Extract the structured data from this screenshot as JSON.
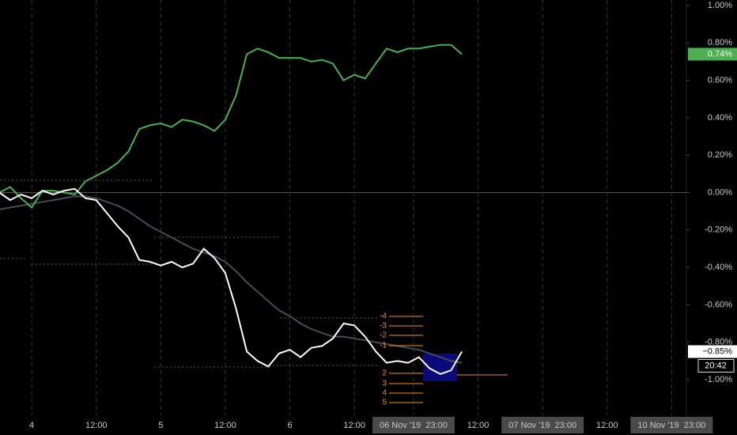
{
  "chart_data": {
    "type": "line",
    "x": [
      -6,
      -4,
      -2,
      0,
      2,
      4,
      6,
      8,
      10,
      12,
      14,
      16,
      18,
      20,
      22,
      24,
      26,
      28,
      30,
      32,
      34,
      36,
      38,
      40,
      42,
      44,
      46,
      48,
      50,
      52,
      54,
      56,
      58,
      60,
      62,
      64,
      66,
      68,
      70,
      72,
      74,
      76,
      78,
      80
    ],
    "series": [
      {
        "color": "#4caf50",
        "values": [
          0,
          0.03,
          -0.03,
          -0.08,
          0.01,
          0.01,
          0,
          -0.01,
          0.06,
          0.09,
          0.12,
          0.16,
          0.22,
          0.34,
          0.36,
          0.37,
          0.35,
          0.39,
          0.38,
          0.36,
          0.33,
          0.39,
          0.52,
          0.74,
          0.77,
          0.75,
          0.72,
          0.72,
          0.72,
          0.7,
          0.71,
          0.69,
          0.6,
          0.63,
          0.61,
          0.69,
          0.77,
          0.75,
          0.77,
          0.77,
          0.78,
          0.79,
          0.79,
          0.74
        ]
      },
      {
        "color": "#ffffff",
        "values": [
          0,
          -0.04,
          -0.01,
          -0.03,
          0.01,
          -0.01,
          0.01,
          0.02,
          -0.03,
          -0.04,
          -0.11,
          -0.18,
          -0.24,
          -0.36,
          -0.37,
          -0.39,
          -0.37,
          -0.4,
          -0.38,
          -0.3,
          -0.35,
          -0.43,
          -0.62,
          -0.85,
          -0.9,
          -0.93,
          -0.86,
          -0.84,
          -0.88,
          -0.83,
          -0.82,
          -0.78,
          -0.7,
          -0.71,
          -0.77,
          -0.85,
          -0.91,
          -0.9,
          -0.91,
          -0.88,
          -0.94,
          -0.97,
          -0.95,
          -0.85
        ]
      },
      {
        "color": "#4a4a55",
        "values": [
          -0.09,
          -0.08,
          -0.07,
          -0.06,
          -0.05,
          -0.04,
          -0.03,
          -0.02,
          -0.02,
          -0.03,
          -0.05,
          -0.07,
          -0.1,
          -0.14,
          -0.18,
          -0.21,
          -0.24,
          -0.27,
          -0.3,
          -0.32,
          -0.34,
          -0.37,
          -0.42,
          -0.48,
          -0.53,
          -0.58,
          -0.63,
          -0.66,
          -0.7,
          -0.73,
          -0.75,
          -0.77,
          -0.77,
          -0.78,
          -0.79,
          -0.8,
          -0.81,
          -0.82,
          -0.83,
          -0.84,
          -0.86,
          -0.88,
          -0.9,
          -0.91
        ]
      }
    ],
    "xlim": [
      -5.9,
      121.3
    ],
    "xticks": [
      {
        "value": 0,
        "label": "4"
      },
      {
        "value": 12,
        "label": "12:00"
      },
      {
        "value": 24,
        "label": "5"
      },
      {
        "value": 36,
        "label": "12:00"
      },
      {
        "value": 48,
        "label": "6"
      },
      {
        "value": 60,
        "label": "12:00"
      },
      {
        "value": 71,
        "label": "06 Nov '19  23:00"
      },
      {
        "value": 83,
        "label": "12:00"
      },
      {
        "value": 95,
        "label": "07 Nov '19  23:00"
      },
      {
        "value": 107,
        "label": "12:00"
      },
      {
        "value": 119,
        "label": "10 Nov '19  23:00"
      }
    ],
    "ylim": [
      -1.1,
      1.03
    ],
    "yticks": [
      {
        "value": 1,
        "label": "1.00%"
      },
      {
        "value": 0.8,
        "label": "0.80%"
      },
      {
        "value": 0.6,
        "label": "0.60%"
      },
      {
        "value": 0.4,
        "label": "0.40%"
      },
      {
        "value": 0.2,
        "label": "0.20%"
      },
      {
        "value": 0,
        "label": "0.00%"
      },
      {
        "value": -0.2,
        "label": "-0.20%"
      },
      {
        "value": -0.4,
        "label": "-0.40%"
      },
      {
        "value": -0.6,
        "label": "-0.60%"
      },
      {
        "value": -0.8,
        "label": "-0.80%"
      },
      {
        "value": -1,
        "label": "-1.00%"
      }
    ],
    "grid": true,
    "annotations": {
      "last_labels": [
        "0.74%",
        "−0.85%"
      ],
      "time_label": "20:42",
      "levels": [
        "-4",
        "-3",
        "-2",
        "-1",
        "2",
        "3",
        "4",
        "5"
      ]
    }
  }
}
